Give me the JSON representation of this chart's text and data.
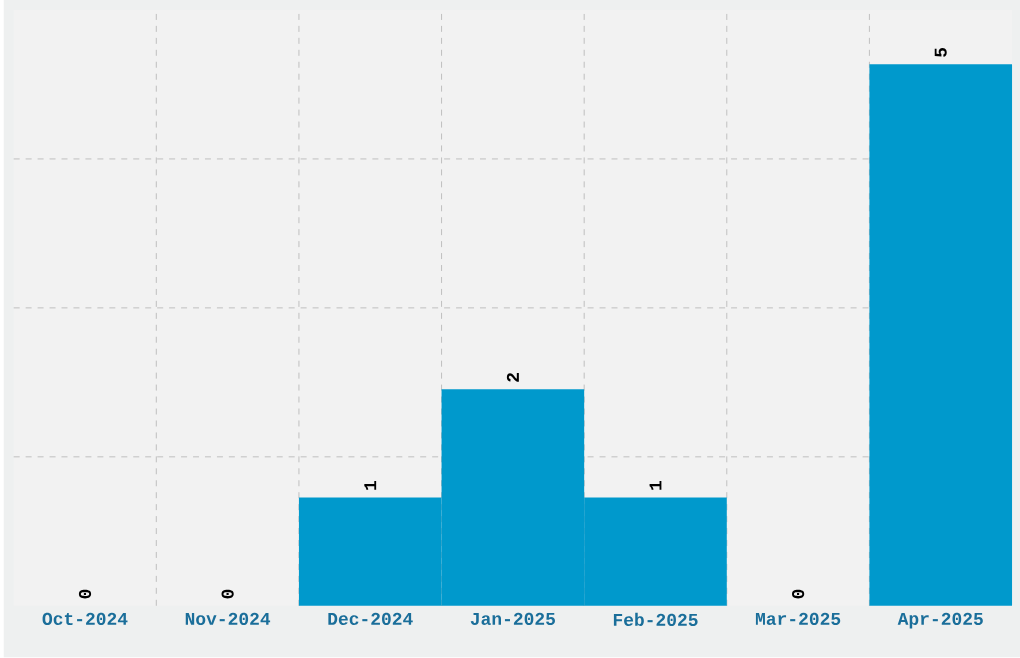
{
  "chart_data": {
    "type": "bar",
    "categories": [
      "Oct-2024",
      "Nov-2024",
      "Dec-2024",
      "Jan-2025",
      "Feb-2025",
      "Mar-2025",
      "Apr-2025"
    ],
    "values": [
      0,
      0,
      1,
      2,
      1,
      0,
      5
    ],
    "color": "#0099cc",
    "ylim": [
      0,
      5.5
    ],
    "yticks": [
      {
        "value": 1.375,
        "label": null
      },
      {
        "value": 2.75,
        "label": null
      },
      {
        "value": 4.125,
        "label": null
      }
    ],
    "tick_labels": "x",
    "grid": true,
    "data_labels": true
  }
}
